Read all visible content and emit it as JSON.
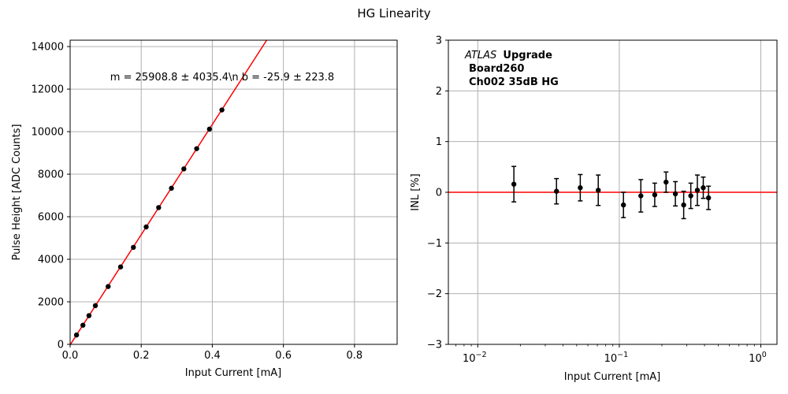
{
  "figure": {
    "title": "HG Linearity"
  },
  "colors": {
    "fit_line": "#ff0000",
    "points": "#000000",
    "grid": "#b0b0b0",
    "background": "#ffffff"
  },
  "chart_data": [
    {
      "type": "scatter",
      "xlabel": "Input Current [mA]",
      "ylabel": "Pulse Height [ADC Counts]",
      "xlim": [
        0,
        0.92
      ],
      "ylim": [
        0,
        14300
      ],
      "x_scale": "linear",
      "grid": true,
      "xticks": [
        0.0,
        0.2,
        0.4,
        0.6,
        0.8
      ],
      "xtick_labels": [
        "0.0",
        "0.2",
        "0.4",
        "0.6",
        "0.8"
      ],
      "yticks": [
        0,
        2000,
        4000,
        6000,
        8000,
        10000,
        12000,
        14000
      ],
      "ytick_labels": [
        "0",
        "2000",
        "4000",
        "6000",
        "8000",
        "10000",
        "12000",
        "14000"
      ],
      "annotation": "m = 25908.8 ± 4035.4\\n b = -25.9 ± 223.8",
      "fit": {
        "slope": 25908.8,
        "intercept": -25.9
      },
      "series": [
        {
          "x": [
            0.018,
            0.036,
            0.053,
            0.071,
            0.107,
            0.142,
            0.178,
            0.214,
            0.249,
            0.285,
            0.32,
            0.356,
            0.392,
            0.427
          ],
          "y": [
            440,
            900,
            1350,
            1820,
            2720,
            3640,
            4560,
            5520,
            6430,
            7340,
            8250,
            9200,
            10120,
            11020
          ]
        }
      ]
    },
    {
      "type": "scatter",
      "xlabel": "Input Current [mA]",
      "ylabel": "INL [%]",
      "xlim": [
        0.0062,
        1.3
      ],
      "ylim": [
        -3,
        3
      ],
      "x_scale": "log",
      "grid": true,
      "xtick_labels": [
        "10^-2",
        "10^-1",
        "10^0"
      ],
      "yticks": [
        -3,
        -2,
        -1,
        0,
        1,
        2,
        3
      ],
      "ytick_labels": [
        "−3",
        "−2",
        "−1",
        "0",
        "1",
        "2",
        "3"
      ],
      "reference_line": 0,
      "annotation": {
        "experiment": "ATLAS",
        "status": "Upgrade",
        "line2": "Board260",
        "line3": "Ch002 35dB HG"
      },
      "series": [
        {
          "x": [
            0.018,
            0.036,
            0.053,
            0.071,
            0.107,
            0.142,
            0.178,
            0.214,
            0.249,
            0.285,
            0.32,
            0.356,
            0.392,
            0.427
          ],
          "y": [
            0.16,
            0.02,
            0.09,
            0.04,
            -0.25,
            -0.07,
            -0.05,
            0.2,
            -0.03,
            -0.25,
            -0.07,
            0.04,
            0.09,
            -0.11
          ],
          "yerr": [
            0.35,
            0.25,
            0.26,
            0.3,
            0.25,
            0.32,
            0.23,
            0.2,
            0.24,
            0.27,
            0.25,
            0.3,
            0.21,
            0.23
          ]
        }
      ]
    }
  ]
}
